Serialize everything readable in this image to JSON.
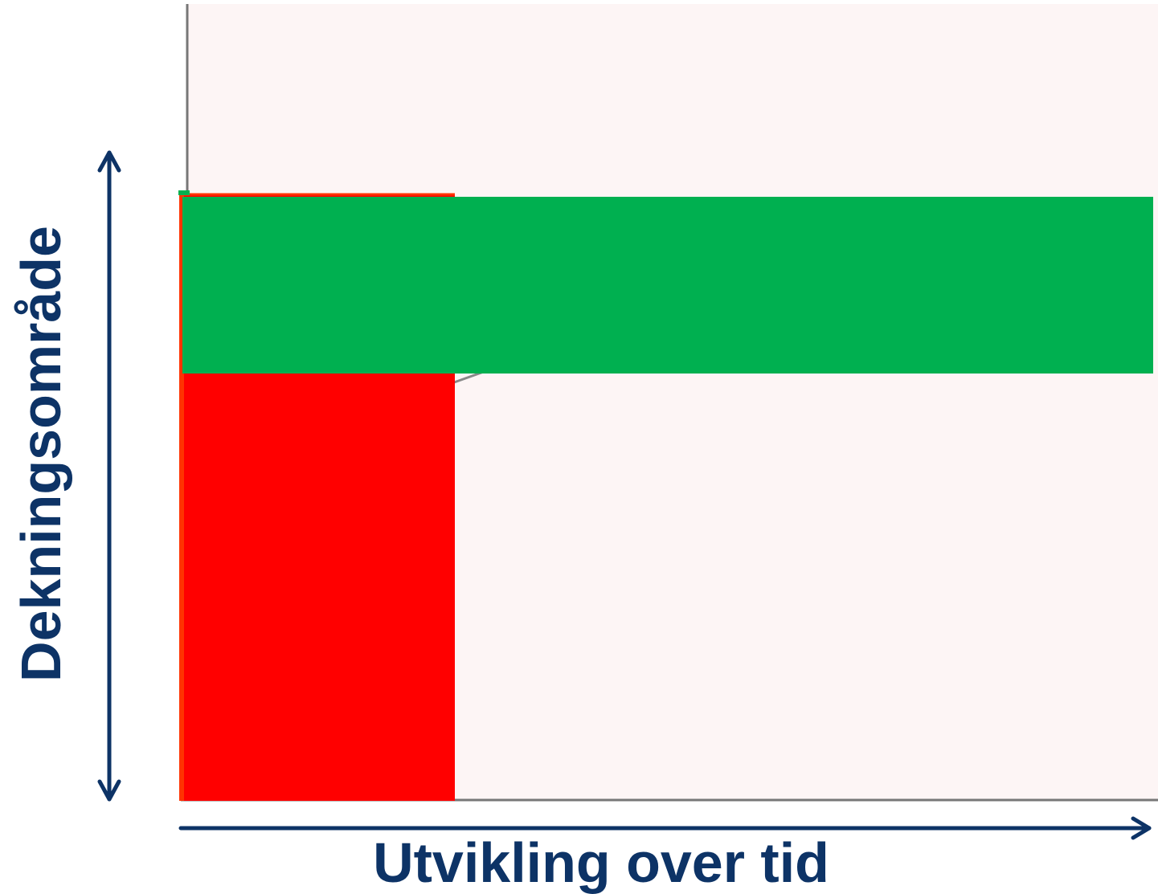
{
  "diagram": {
    "y_axis_label": "Dekningsområde",
    "x_axis_label": "Utvikling over tid",
    "colors": {
      "background": "#ffffff",
      "plot_area": "#fdf5f5",
      "axis_arrows": "#0d3366",
      "frame_line": "#777777",
      "green_bar": "#00b050",
      "red_block": "#ff0000",
      "red_edge": "#ff3300"
    }
  }
}
